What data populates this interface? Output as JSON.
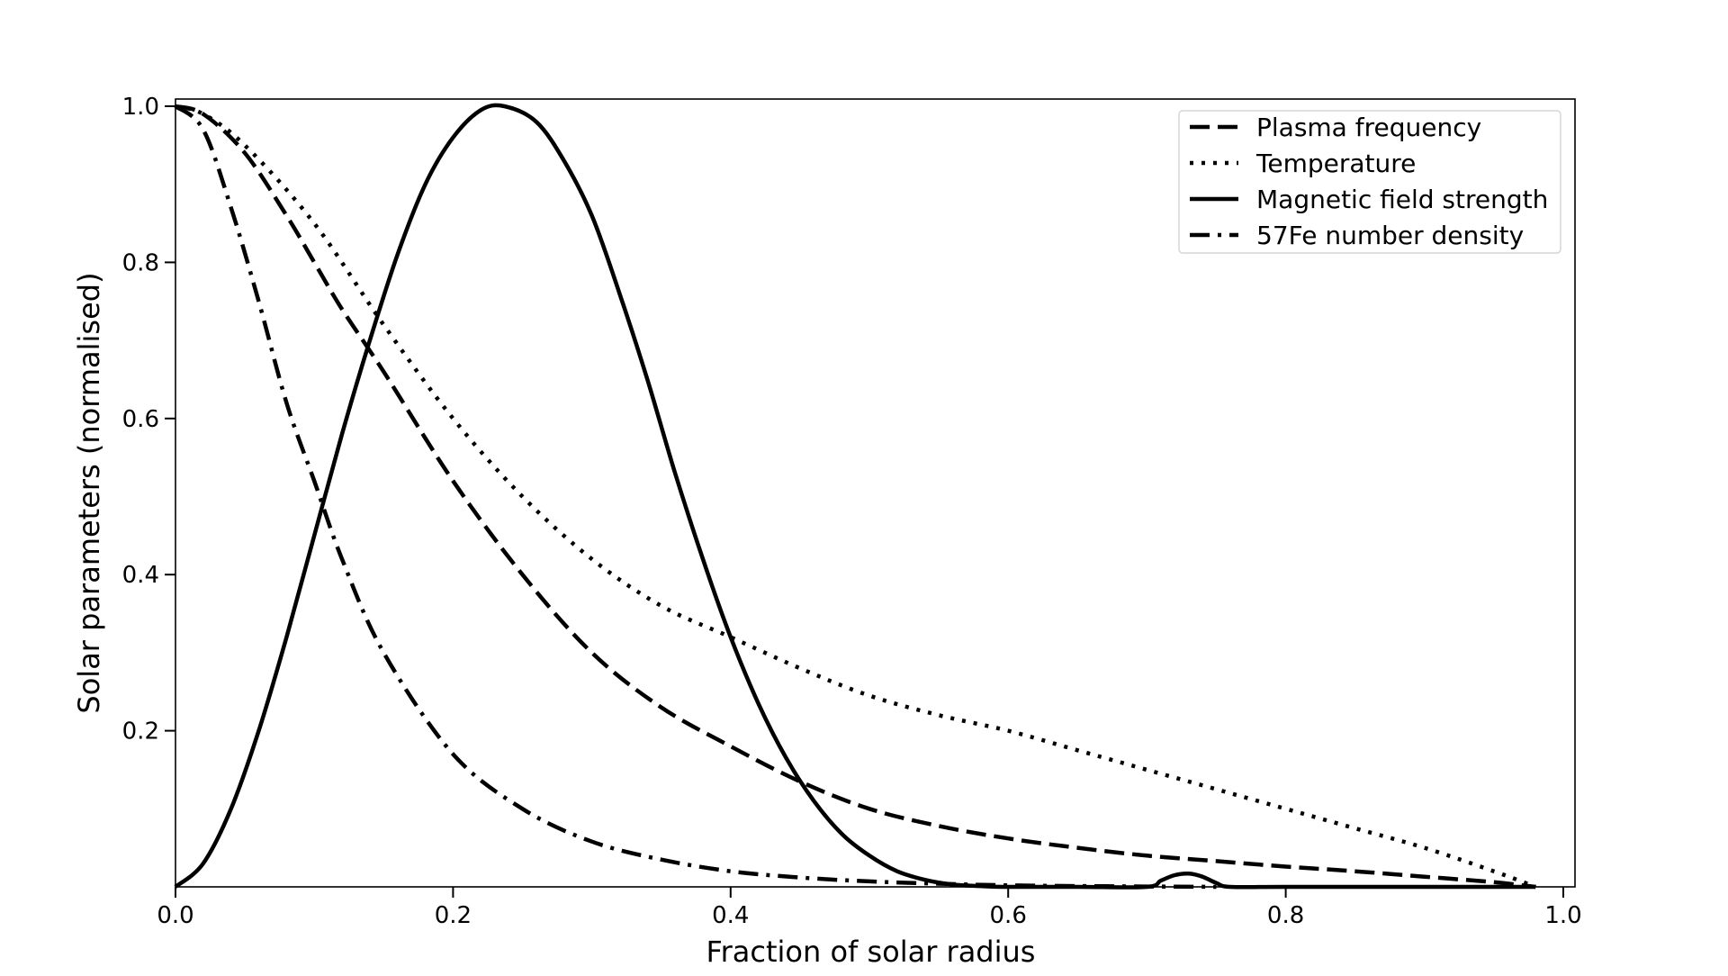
{
  "chart_data": {
    "type": "line",
    "title": "",
    "xlabel": "Fraction of solar radius",
    "ylabel": "Solar parameters (normalised)",
    "xlim": [
      0.0,
      1.0
    ],
    "ylim": [
      0.0,
      1.0
    ],
    "xticks": [
      "0.0",
      "0.2",
      "0.4",
      "0.6",
      "0.8",
      "1.0"
    ],
    "yticks": [
      "0.2",
      "0.4",
      "0.6",
      "0.8",
      "1.0"
    ],
    "xtick_values": [
      0.0,
      0.2,
      0.4,
      0.6,
      0.8,
      1.0
    ],
    "ytick_values": [
      0.2,
      0.4,
      0.6,
      0.8,
      1.0
    ],
    "grid": false,
    "legend_position": "top-right",
    "series": [
      {
        "name": "Plasma frequency",
        "style": "dashed",
        "color": "#000000",
        "x": [
          0.0,
          0.02,
          0.05,
          0.08,
          0.1,
          0.12,
          0.15,
          0.2,
          0.25,
          0.3,
          0.35,
          0.4,
          0.45,
          0.5,
          0.55,
          0.6,
          0.65,
          0.7,
          0.75,
          0.8,
          0.85,
          0.9,
          0.95,
          0.98
        ],
        "y": [
          1.0,
          0.99,
          0.94,
          0.86,
          0.8,
          0.74,
          0.66,
          0.52,
          0.4,
          0.3,
          0.23,
          0.18,
          0.135,
          0.1,
          0.078,
          0.062,
          0.05,
          0.04,
          0.033,
          0.026,
          0.02,
          0.013,
          0.006,
          0.0
        ]
      },
      {
        "name": "Temperature",
        "style": "dotted",
        "color": "#000000",
        "x": [
          0.0,
          0.02,
          0.05,
          0.1,
          0.15,
          0.2,
          0.25,
          0.3,
          0.35,
          0.4,
          0.45,
          0.5,
          0.55,
          0.6,
          0.65,
          0.7,
          0.75,
          0.8,
          0.85,
          0.9,
          0.95,
          0.98
        ],
        "y": [
          1.0,
          0.99,
          0.95,
          0.85,
          0.72,
          0.6,
          0.5,
          0.42,
          0.36,
          0.32,
          0.28,
          0.245,
          0.22,
          0.2,
          0.175,
          0.15,
          0.125,
          0.1,
          0.075,
          0.05,
          0.02,
          0.0
        ]
      },
      {
        "name": "Magnetic field strength",
        "style": "solid",
        "color": "#000000",
        "x": [
          0.0,
          0.02,
          0.04,
          0.06,
          0.08,
          0.1,
          0.12,
          0.14,
          0.16,
          0.18,
          0.2,
          0.22,
          0.237,
          0.26,
          0.28,
          0.3,
          0.32,
          0.34,
          0.36,
          0.38,
          0.4,
          0.42,
          0.44,
          0.46,
          0.48,
          0.5,
          0.52,
          0.54,
          0.56,
          0.58,
          0.6,
          0.65,
          0.7,
          0.71,
          0.72,
          0.73,
          0.74,
          0.75,
          0.76,
          0.8,
          0.9,
          0.98
        ],
        "y": [
          0.0,
          0.03,
          0.1,
          0.2,
          0.32,
          0.45,
          0.58,
          0.7,
          0.81,
          0.9,
          0.96,
          0.995,
          1.0,
          0.98,
          0.93,
          0.86,
          0.76,
          0.65,
          0.53,
          0.42,
          0.32,
          0.235,
          0.165,
          0.11,
          0.068,
          0.04,
          0.02,
          0.009,
          0.003,
          0.001,
          0.0,
          0.0,
          0.0,
          0.008,
          0.015,
          0.017,
          0.013,
          0.005,
          0.0,
          0.0,
          0.0,
          0.0
        ]
      },
      {
        "name": "57Fe number density",
        "style": "dashdot",
        "color": "#000000",
        "x": [
          0.0,
          0.02,
          0.04,
          0.06,
          0.08,
          0.1,
          0.12,
          0.15,
          0.2,
          0.25,
          0.3,
          0.35,
          0.4,
          0.45,
          0.5,
          0.55,
          0.6,
          0.65,
          0.7,
          0.75
        ],
        "y": [
          1.0,
          0.97,
          0.87,
          0.75,
          0.62,
          0.52,
          0.42,
          0.3,
          0.17,
          0.1,
          0.058,
          0.035,
          0.02,
          0.012,
          0.007,
          0.004,
          0.002,
          0.001,
          0.0005,
          0.0
        ]
      }
    ]
  }
}
